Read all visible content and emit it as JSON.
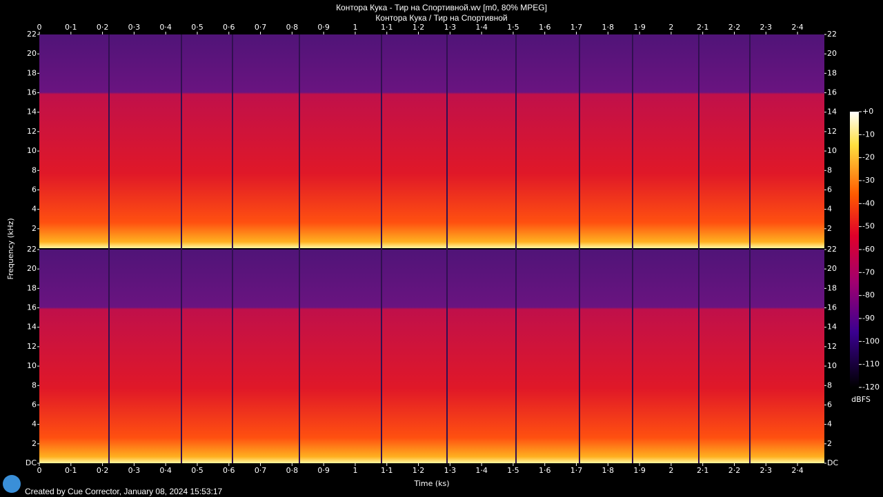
{
  "chart_data": {
    "type": "spectrogram",
    "title": "Контора Кука - Тир на Спортивной.wv [m0, 80% MPEG]",
    "subtitle": "Контора Кука / Тир на Спортивной",
    "x_label": "Time (ks)",
    "y_label": "Frequency (kHz)",
    "colorbar_label": "dBFS",
    "xlim": [
      0,
      2.485
    ],
    "xticks": [
      0,
      {
        "value": 0.1,
        "label": "0·1"
      },
      {
        "value": 0.2,
        "label": "0·2"
      },
      {
        "value": 0.3,
        "label": "0·3"
      },
      {
        "value": 0.4,
        "label": "0·4"
      },
      {
        "value": 0.5,
        "label": "0·5"
      },
      {
        "value": 0.6,
        "label": "0·6"
      },
      {
        "value": 0.7,
        "label": "0·7"
      },
      {
        "value": 0.8,
        "label": "0·8"
      },
      {
        "value": 0.9,
        "label": "0·9"
      },
      1,
      {
        "value": 1.1,
        "label": "1·1"
      },
      {
        "value": 1.2,
        "label": "1·2"
      },
      {
        "value": 1.3,
        "label": "1·3"
      },
      {
        "value": 1.4,
        "label": "1·4"
      },
      {
        "value": 1.5,
        "label": "1·5"
      },
      {
        "value": 1.6,
        "label": "1·6"
      },
      {
        "value": 1.7,
        "label": "1·7"
      },
      {
        "value": 1.8,
        "label": "1·8"
      },
      {
        "value": 1.9,
        "label": "1·9"
      },
      2,
      {
        "value": 2.1,
        "label": "2·1"
      },
      {
        "value": 2.2,
        "label": "2·2"
      },
      {
        "value": 2.3,
        "label": "2·3"
      },
      {
        "value": 2.4,
        "label": "2·4"
      }
    ],
    "ylim": [
      0,
      22
    ],
    "yticks": [
      {
        "value": 0,
        "label": "DC"
      },
      2,
      4,
      6,
      8,
      10,
      12,
      14,
      16,
      18,
      20,
      22
    ],
    "clim": [
      -120,
      0
    ],
    "cticks": [
      {
        "value": 0,
        "label": "+0"
      },
      -10,
      -20,
      -30,
      -40,
      -50,
      -60,
      -70,
      -80,
      -90,
      -100,
      -110,
      -120
    ]
  },
  "footer": "Created by Cue Corrector, January 08, 2024 15:53:17"
}
